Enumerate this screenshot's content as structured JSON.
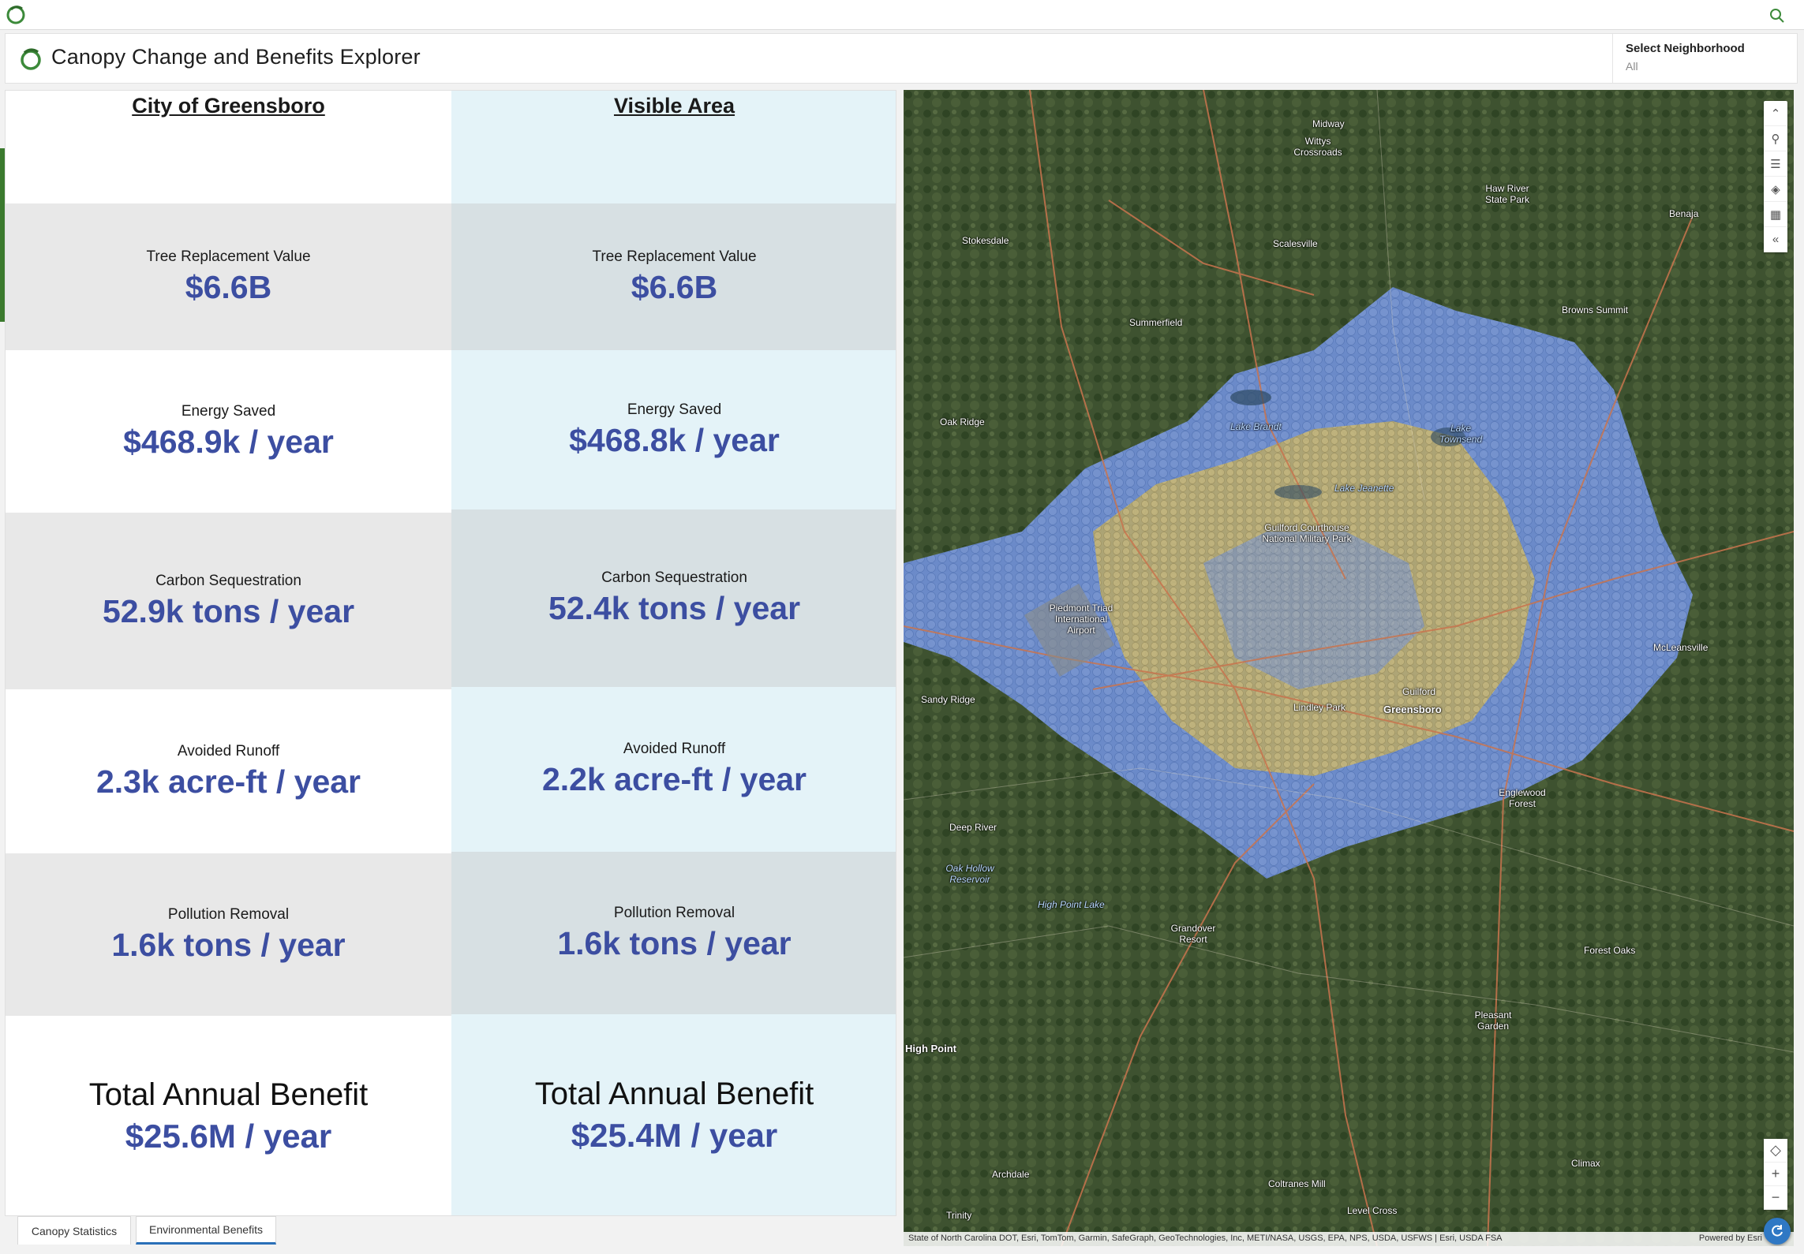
{
  "header": {
    "title": "Canopy Change and Benefits Explorer",
    "neighborhood_label": "Select Neighborhood",
    "neighborhood_value": "All"
  },
  "columns": [
    {
      "heading": "City of Greensboro",
      "metrics": [
        {
          "label": "Tree Replacement Value",
          "value": "$6.6B"
        },
        {
          "label": "Energy Saved",
          "value": "$468.9k / year"
        },
        {
          "label": "Carbon Sequestration",
          "value": "52.9k tons / year"
        },
        {
          "label": "Avoided Runoff",
          "value": "2.3k acre-ft / year"
        },
        {
          "label": "Pollution Removal",
          "value": "1.6k tons / year"
        }
      ],
      "total": {
        "label": "Total Annual Benefit",
        "value": "$25.6M / year"
      }
    },
    {
      "heading": "Visible Area",
      "metrics": [
        {
          "label": "Tree Replacement Value",
          "value": "$6.6B"
        },
        {
          "label": "Energy Saved",
          "value": "$468.8k / year"
        },
        {
          "label": "Carbon Sequestration",
          "value": "52.4k tons / year"
        },
        {
          "label": "Avoided Runoff",
          "value": "2.2k acre-ft / year"
        },
        {
          "label": "Pollution Removal",
          "value": "1.6k tons / year"
        }
      ],
      "total": {
        "label": "Total Annual Benefit",
        "value": "$25.4M / year"
      }
    }
  ],
  "tabs": [
    {
      "label": "Canopy Statistics"
    },
    {
      "label": "Environmental Benefits"
    }
  ],
  "map": {
    "places": [
      {
        "name": "Midway",
        "kind": "town"
      },
      {
        "name": "Wittys Crossroads",
        "kind": "town"
      },
      {
        "name": "Haw River State Park",
        "kind": "town"
      },
      {
        "name": "Benaja",
        "kind": "town"
      },
      {
        "name": "Stokesdale",
        "kind": "town"
      },
      {
        "name": "Scalesville",
        "kind": "town"
      },
      {
        "name": "Browns Summit",
        "kind": "town"
      },
      {
        "name": "Summerfield",
        "kind": "town"
      },
      {
        "name": "Oak Ridge",
        "kind": "town"
      },
      {
        "name": "Lake Brandt",
        "kind": "water"
      },
      {
        "name": "Lake Townsend",
        "kind": "water"
      },
      {
        "name": "Lake Jeanette",
        "kind": "water"
      },
      {
        "name": "Guilford Courthouse National Military Park",
        "kind": "town"
      },
      {
        "name": "Piedmont Triad International Airport",
        "kind": "town"
      },
      {
        "name": "McLeansville",
        "kind": "town"
      },
      {
        "name": "Sandy Ridge",
        "kind": "town"
      },
      {
        "name": "Guilford",
        "kind": "city"
      },
      {
        "name": "Greensboro",
        "kind": "city"
      },
      {
        "name": "Lindley Park",
        "kind": "town"
      },
      {
        "name": "Englewood Forest",
        "kind": "town"
      },
      {
        "name": "Deep River",
        "kind": "town"
      },
      {
        "name": "Oak Hollow Reservoir",
        "kind": "water"
      },
      {
        "name": "High Point Lake",
        "kind": "water"
      },
      {
        "name": "Grandover Resort",
        "kind": "town"
      },
      {
        "name": "Forest Oaks",
        "kind": "town"
      },
      {
        "name": "Pleasant Garden",
        "kind": "town"
      },
      {
        "name": "High Point",
        "kind": "city"
      },
      {
        "name": "Climax",
        "kind": "town"
      },
      {
        "name": "Archdale",
        "kind": "town"
      },
      {
        "name": "Coltranes Mill",
        "kind": "town"
      },
      {
        "name": "Level Cross",
        "kind": "town"
      },
      {
        "name": "Trinity",
        "kind": "town"
      }
    ],
    "attribution": "State of North Carolina DOT, Esri, TomTom, Garmin, SafeGraph, GeoTechnologies, Inc, METI/NASA, USGS, EPA, NPS, USDA, USFWS | Esri, USDA FSA",
    "powered_by": "Powered by Esri",
    "colors": {
      "canopy_blue": "#6f8fd6",
      "canopy_yellow": "#c9b46a",
      "terrain": "#3b4f2e"
    }
  }
}
